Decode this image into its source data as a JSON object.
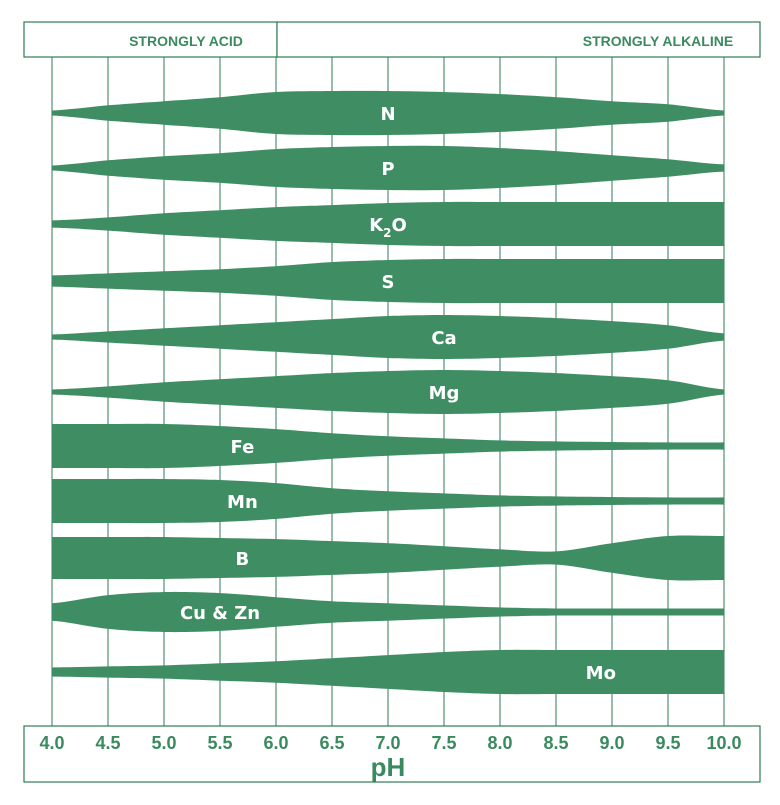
{
  "colors": {
    "band": "#3f8e63",
    "grid": "#2f7d52",
    "text": "#3a8a5f",
    "background": "#ffffff"
  },
  "header": {
    "left": "STRONGLY ACID",
    "right": "STRONGLY ALKALINE"
  },
  "chart_data": {
    "type": "area",
    "xlabel": "pH",
    "xlim": [
      4.0,
      10.0
    ],
    "ticks": [
      "4.0",
      "4.5",
      "5.0",
      "5.5",
      "6.0",
      "6.5",
      "7.0",
      "7.5",
      "8.0",
      "8.5",
      "9.0",
      "9.5",
      "10.0"
    ],
    "x": [
      4.0,
      4.5,
      5.0,
      5.5,
      6.0,
      6.5,
      7.0,
      7.5,
      8.0,
      8.5,
      9.0,
      9.5,
      10.0
    ],
    "value_description": "relative nutrient availability (band thickness)",
    "series": [
      {
        "name": "N",
        "values": [
          0.05,
          0.3,
          0.5,
          0.7,
          0.95,
          1.0,
          1.0,
          0.95,
          0.85,
          0.7,
          0.5,
          0.35,
          0.05
        ]
      },
      {
        "name": "P",
        "values": [
          0.05,
          0.3,
          0.5,
          0.65,
          0.85,
          0.95,
          1.0,
          1.0,
          0.9,
          0.75,
          0.55,
          0.35,
          0.1
        ]
      },
      {
        "name": "K2O",
        "sub": "2",
        "pre": "K",
        "post": "O",
        "values": [
          0.1,
          0.25,
          0.45,
          0.6,
          0.75,
          0.85,
          0.95,
          1.0,
          1.0,
          1.0,
          1.0,
          1.0,
          1.0
        ]
      },
      {
        "name": "S",
        "values": [
          0.2,
          0.3,
          0.4,
          0.5,
          0.65,
          0.85,
          0.95,
          1.0,
          1.0,
          1.0,
          1.0,
          1.0,
          1.0
        ]
      },
      {
        "name": "Ca",
        "values": [
          0.05,
          0.2,
          0.35,
          0.5,
          0.65,
          0.8,
          0.95,
          1.0,
          0.95,
          0.85,
          0.7,
          0.5,
          0.1
        ]
      },
      {
        "name": "Mg",
        "values": [
          0.05,
          0.2,
          0.4,
          0.55,
          0.7,
          0.85,
          0.95,
          1.0,
          0.95,
          0.85,
          0.7,
          0.5,
          0.05
        ]
      },
      {
        "name": "Fe",
        "values": [
          1.0,
          1.0,
          1.0,
          0.9,
          0.75,
          0.55,
          0.4,
          0.3,
          0.2,
          0.15,
          0.12,
          0.1,
          0.1
        ]
      },
      {
        "name": "Mn",
        "values": [
          1.0,
          1.0,
          1.0,
          0.95,
          0.8,
          0.55,
          0.4,
          0.3,
          0.2,
          0.15,
          0.12,
          0.1,
          0.1
        ]
      },
      {
        "name": "B",
        "values": [
          0.95,
          0.95,
          0.95,
          0.9,
          0.85,
          0.75,
          0.65,
          0.5,
          0.35,
          0.25,
          0.65,
          1.0,
          1.0
        ]
      },
      {
        "name": "Cu & Zn",
        "values": [
          0.35,
          0.75,
          0.9,
          0.85,
          0.65,
          0.45,
          0.35,
          0.25,
          0.15,
          0.1,
          0.1,
          0.1,
          0.1
        ]
      },
      {
        "name": "Mo",
        "values": [
          0.15,
          0.2,
          0.25,
          0.35,
          0.45,
          0.6,
          0.75,
          0.9,
          1.0,
          1.0,
          1.0,
          1.0,
          1.0
        ]
      }
    ],
    "label_positions": [
      "7.0",
      "7.0",
      "7.0",
      "7.0",
      "7.5",
      "7.5",
      "5.7",
      "5.7",
      "5.7",
      "5.5",
      "8.9"
    ]
  }
}
